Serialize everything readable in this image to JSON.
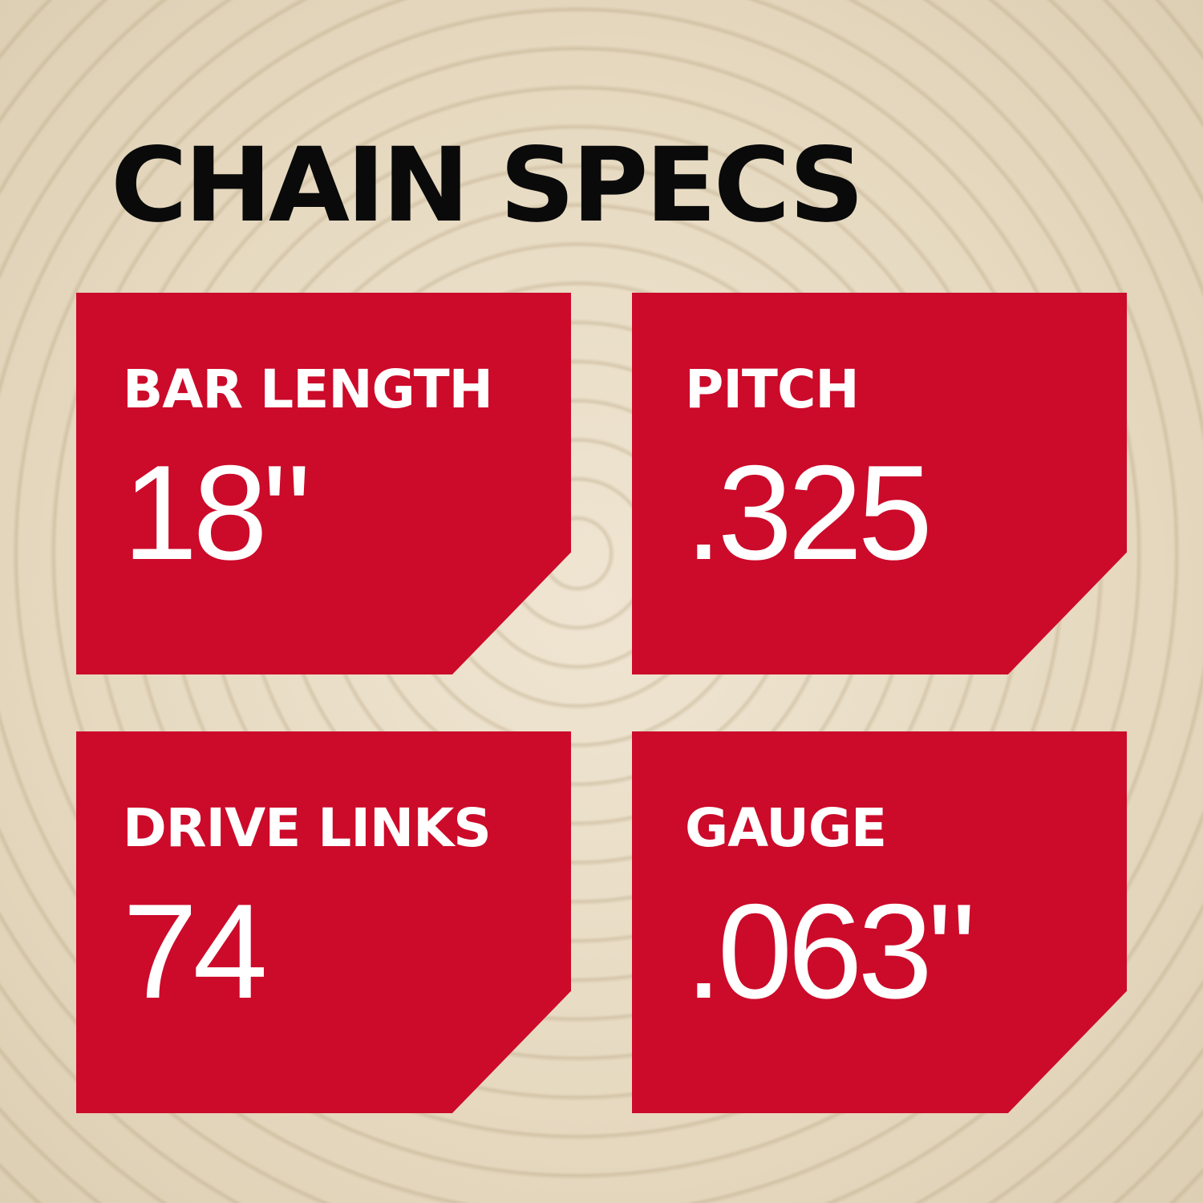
{
  "title": "CHAIN SPECS",
  "colors": {
    "card": "#cc0a2a",
    "text": "#ffffff",
    "title": "#0a0a0a"
  },
  "specs": [
    {
      "label": "BAR LENGTH",
      "value": "18\""
    },
    {
      "label": "PITCH",
      "value": ".325"
    },
    {
      "label": "DRIVE LINKS",
      "value": "74"
    },
    {
      "label": "GAUGE",
      "value": ".063\""
    }
  ]
}
